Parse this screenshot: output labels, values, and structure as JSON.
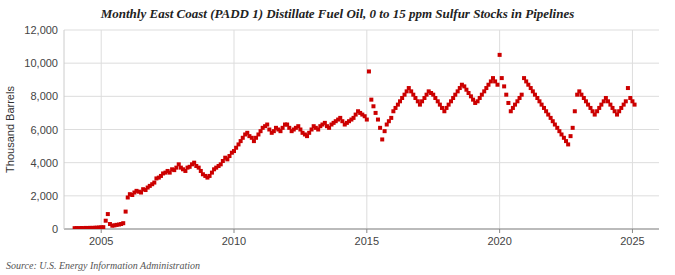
{
  "chart_data": {
    "type": "scatter",
    "title": "Monthly East Coast (PADD 1) Distillate Fuel Oil, 0 to 15 ppm Sulfur Stocks in Pipelines",
    "y_label": "Thousand Barrels",
    "annotations": [
      "Source: U.S. Energy Information Administration"
    ],
    "color": "#CC0000",
    "marker": "square",
    "grid": true,
    "xlim": [
      2003.6,
      2026.0
    ],
    "ylim": [
      0,
      12000
    ],
    "xticks": [
      2005,
      2010,
      2015,
      2020,
      2025
    ],
    "yticks": [
      0,
      {
        "value": 2000,
        "label": "2,000"
      },
      {
        "value": 4000,
        "label": "4,000"
      },
      {
        "value": 6000,
        "label": "6,000"
      },
      {
        "value": 8000,
        "label": "8,000"
      },
      {
        "value": 10000,
        "label": "10,000"
      },
      {
        "value": 12000,
        "label": "12,000"
      }
    ],
    "x": [
      2004.0,
      2004.08,
      2004.17,
      2004.25,
      2004.33,
      2004.42,
      2004.5,
      2004.58,
      2004.67,
      2004.75,
      2004.83,
      2004.92,
      2005.0,
      2005.08,
      2005.17,
      2005.25,
      2005.33,
      2005.42,
      2005.5,
      2005.58,
      2005.67,
      2005.75,
      2005.83,
      2005.92,
      2006.0,
      2006.08,
      2006.17,
      2006.25,
      2006.33,
      2006.42,
      2006.5,
      2006.58,
      2006.67,
      2006.75,
      2006.83,
      2006.92,
      2007.0,
      2007.08,
      2007.17,
      2007.25,
      2007.33,
      2007.42,
      2007.5,
      2007.58,
      2007.67,
      2007.75,
      2007.83,
      2007.92,
      2008.0,
      2008.08,
      2008.17,
      2008.25,
      2008.33,
      2008.42,
      2008.5,
      2008.58,
      2008.67,
      2008.75,
      2008.83,
      2008.92,
      2009.0,
      2009.08,
      2009.17,
      2009.25,
      2009.33,
      2009.42,
      2009.5,
      2009.58,
      2009.67,
      2009.75,
      2009.83,
      2009.92,
      2010.0,
      2010.08,
      2010.17,
      2010.25,
      2010.33,
      2010.42,
      2010.5,
      2010.58,
      2010.67,
      2010.75,
      2010.83,
      2010.92,
      2011.0,
      2011.08,
      2011.17,
      2011.25,
      2011.33,
      2011.42,
      2011.5,
      2011.58,
      2011.67,
      2011.75,
      2011.83,
      2011.92,
      2012.0,
      2012.08,
      2012.17,
      2012.25,
      2012.33,
      2012.42,
      2012.5,
      2012.58,
      2012.67,
      2012.75,
      2012.83,
      2012.92,
      2013.0,
      2013.08,
      2013.17,
      2013.25,
      2013.33,
      2013.42,
      2013.5,
      2013.58,
      2013.67,
      2013.75,
      2013.83,
      2013.92,
      2014.0,
      2014.08,
      2014.17,
      2014.25,
      2014.33,
      2014.42,
      2014.5,
      2014.58,
      2014.67,
      2014.75,
      2014.83,
      2014.92,
      2015.0,
      2015.08,
      2015.17,
      2015.25,
      2015.33,
      2015.42,
      2015.5,
      2015.58,
      2015.67,
      2015.75,
      2015.83,
      2015.92,
      2016.0,
      2016.08,
      2016.17,
      2016.25,
      2016.33,
      2016.42,
      2016.5,
      2016.58,
      2016.67,
      2016.75,
      2016.83,
      2016.92,
      2017.0,
      2017.08,
      2017.17,
      2017.25,
      2017.33,
      2017.42,
      2017.5,
      2017.58,
      2017.67,
      2017.75,
      2017.83,
      2017.92,
      2018.0,
      2018.08,
      2018.17,
      2018.25,
      2018.33,
      2018.42,
      2018.5,
      2018.58,
      2018.67,
      2018.75,
      2018.83,
      2018.92,
      2019.0,
      2019.08,
      2019.17,
      2019.25,
      2019.33,
      2019.42,
      2019.5,
      2019.58,
      2019.67,
      2019.75,
      2019.83,
      2019.92,
      2020.0,
      2020.08,
      2020.17,
      2020.25,
      2020.33,
      2020.42,
      2020.5,
      2020.58,
      2020.67,
      2020.75,
      2020.83,
      2020.92,
      2021.0,
      2021.08,
      2021.17,
      2021.25,
      2021.33,
      2021.42,
      2021.5,
      2021.58,
      2021.67,
      2021.75,
      2021.83,
      2021.92,
      2022.0,
      2022.08,
      2022.17,
      2022.25,
      2022.33,
      2022.42,
      2022.5,
      2022.58,
      2022.67,
      2022.75,
      2022.83,
      2022.92,
      2023.0,
      2023.08,
      2023.17,
      2023.25,
      2023.33,
      2023.42,
      2023.5,
      2023.58,
      2023.67,
      2023.75,
      2023.83,
      2023.92,
      2024.0,
      2024.08,
      2024.17,
      2024.25,
      2024.33,
      2024.42,
      2024.5,
      2024.58,
      2024.67,
      2024.75,
      2024.83,
      2024.92,
      2025.0,
      2025.08
    ],
    "values": [
      50,
      55,
      50,
      60,
      55,
      65,
      60,
      70,
      65,
      75,
      80,
      90,
      100,
      110,
      500,
      900,
      300,
      200,
      220,
      250,
      270,
      300,
      350,
      1050,
      1900,
      2100,
      2050,
      2200,
      2300,
      2250,
      2200,
      2400,
      2350,
      2500,
      2600,
      2700,
      2800,
      3050,
      3100,
      3200,
      3350,
      3400,
      3500,
      3400,
      3600,
      3550,
      3700,
      3900,
      3700,
      3600,
      3500,
      3700,
      3750,
      3900,
      4000,
      3800,
      3700,
      3500,
      3300,
      3200,
      3100,
      3200,
      3400,
      3600,
      3700,
      3800,
      3900,
      4100,
      4300,
      4200,
      4400,
      4600,
      4700,
      4900,
      5100,
      5300,
      5500,
      5700,
      5800,
      5600,
      5500,
      5300,
      5500,
      5700,
      5900,
      6100,
      6200,
      6300,
      6000,
      5800,
      5900,
      6100,
      6000,
      5900,
      6100,
      6300,
      6300,
      6100,
      5900,
      6000,
      6100,
      6200,
      6000,
      5800,
      5700,
      5600,
      5800,
      6000,
      6200,
      6100,
      6000,
      6200,
      6300,
      6400,
      6200,
      6100,
      6300,
      6400,
      6500,
      6600,
      6700,
      6500,
      6300,
      6400,
      6500,
      6600,
      6700,
      6900,
      7100,
      7000,
      6900,
      6800,
      6600,
      9500,
      7800,
      7400,
      7000,
      6600,
      6100,
      5400,
      5900,
      6300,
      6500,
      6700,
      7100,
      7300,
      7500,
      7700,
      7900,
      8100,
      8300,
      8500,
      8300,
      8100,
      7900,
      7700,
      7500,
      7700,
      7900,
      8100,
      8300,
      8200,
      8100,
      7900,
      7700,
      7500,
      7300,
      7100,
      7300,
      7500,
      7700,
      7900,
      8100,
      8300,
      8500,
      8700,
      8600,
      8400,
      8200,
      8000,
      7800,
      7600,
      7700,
      7900,
      8100,
      8300,
      8500,
      8700,
      8900,
      9100,
      8900,
      8700,
      10500,
      9100,
      8600,
      8100,
      7600,
      7100,
      7300,
      7500,
      7700,
      7900,
      8100,
      9100,
      8900,
      8700,
      8500,
      8300,
      8100,
      7900,
      7700,
      7500,
      7300,
      7100,
      6900,
      6700,
      6500,
      6300,
      6100,
      5900,
      5700,
      5500,
      5300,
      5100,
      5600,
      6100,
      7100,
      8100,
      8300,
      8100,
      7900,
      7700,
      7500,
      7300,
      7100,
      6900,
      7100,
      7300,
      7500,
      7700,
      7900,
      7700,
      7500,
      7300,
      7100,
      6900,
      7100,
      7300,
      7500,
      7700,
      8500,
      7900,
      7700,
      7500
    ]
  }
}
